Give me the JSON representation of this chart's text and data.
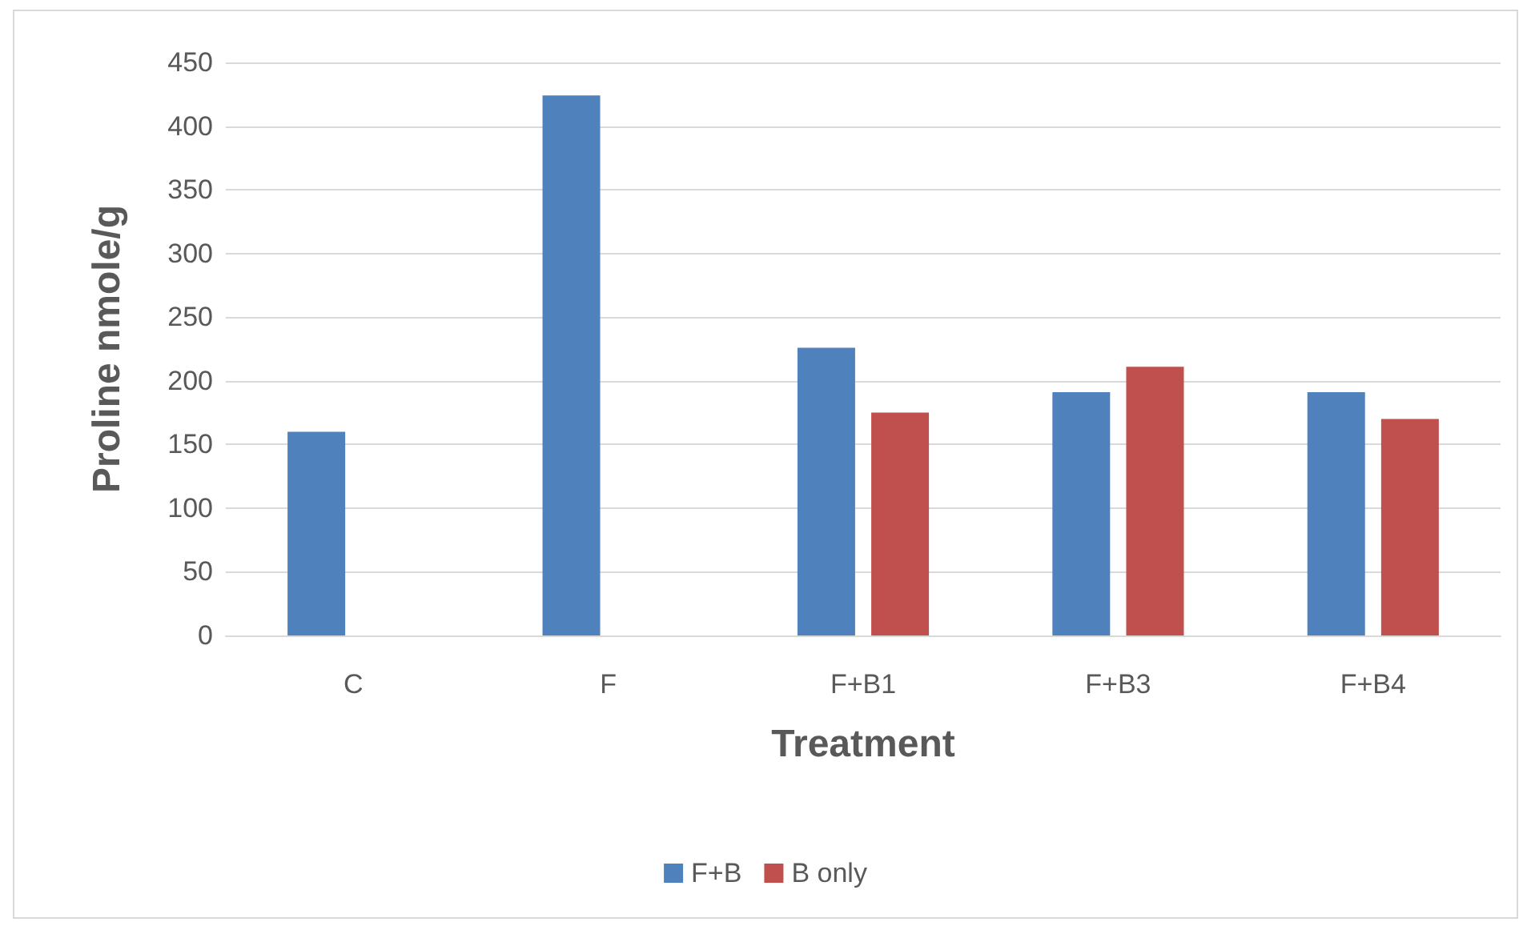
{
  "chart_data": {
    "type": "bar",
    "xlabel": "Treatment",
    "ylabel": "Proline nmole/g",
    "categories": [
      "C",
      "F",
      "F+B1",
      "F+B3",
      "F+B4"
    ],
    "series": [
      {
        "name": "F+B",
        "color": "#4f81bd",
        "values": [
          160,
          424,
          226,
          191,
          191
        ]
      },
      {
        "name": "B only",
        "color": "#c0504d",
        "values": [
          null,
          null,
          175,
          211,
          170
        ]
      }
    ],
    "ylim": [
      0,
      450
    ],
    "yticks": [
      0,
      50,
      100,
      150,
      200,
      250,
      300,
      350,
      400,
      450
    ],
    "grid": "y",
    "legend": "bottom"
  }
}
